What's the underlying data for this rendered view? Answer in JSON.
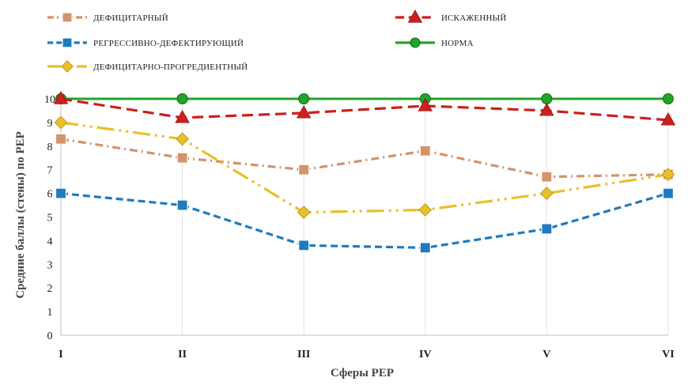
{
  "chart_data": {
    "type": "line",
    "title": "",
    "xlabel": "Сферы РЕР",
    "ylabel": "Средние баллы (стены) по  РЕР",
    "categories": [
      "I",
      "II",
      "III",
      "IV",
      "V",
      "VI"
    ],
    "ylim": [
      0,
      10
    ],
    "yticks": [
      0,
      1,
      2,
      3,
      4,
      5,
      6,
      7,
      8,
      9,
      10
    ],
    "grid": "vertical",
    "legend_position": "top",
    "series": [
      {
        "name": "ДЕФИЦИТАРНЫЙ",
        "values": [
          8.3,
          7.5,
          7.0,
          7.8,
          6.7,
          6.8
        ],
        "color": "#d4936a",
        "dash": "10,5,2,5",
        "marker": "square"
      },
      {
        "name": "ИСКАЖЕННЫЙ",
        "values": [
          10.0,
          9.2,
          9.4,
          9.7,
          9.5,
          9.1
        ],
        "color": "#cc1f1f",
        "dash": "14,7",
        "marker": "triangle"
      },
      {
        "name": "РЕГРЕССИВНО-ДЕФЕКТИРУЮЩИЙ",
        "values": [
          6.0,
          5.5,
          3.8,
          3.7,
          4.5,
          6.0
        ],
        "color": "#1e7bbf",
        "dash": "9,5",
        "marker": "square"
      },
      {
        "name": "НОРМА",
        "values": [
          10.0,
          10.0,
          10.0,
          10.0,
          10.0,
          10.0
        ],
        "color": "#22a32a",
        "dash": "",
        "marker": "circle"
      },
      {
        "name": "ДЕФИЦИТАРНО-ПРОГРЕДИЕНТНЫЙ",
        "values": [
          9.0,
          8.3,
          5.2,
          5.3,
          6.0,
          6.8
        ],
        "color": "#e8c02a",
        "dash": "22,6,3,6,3,6",
        "marker": "diamond"
      }
    ]
  }
}
